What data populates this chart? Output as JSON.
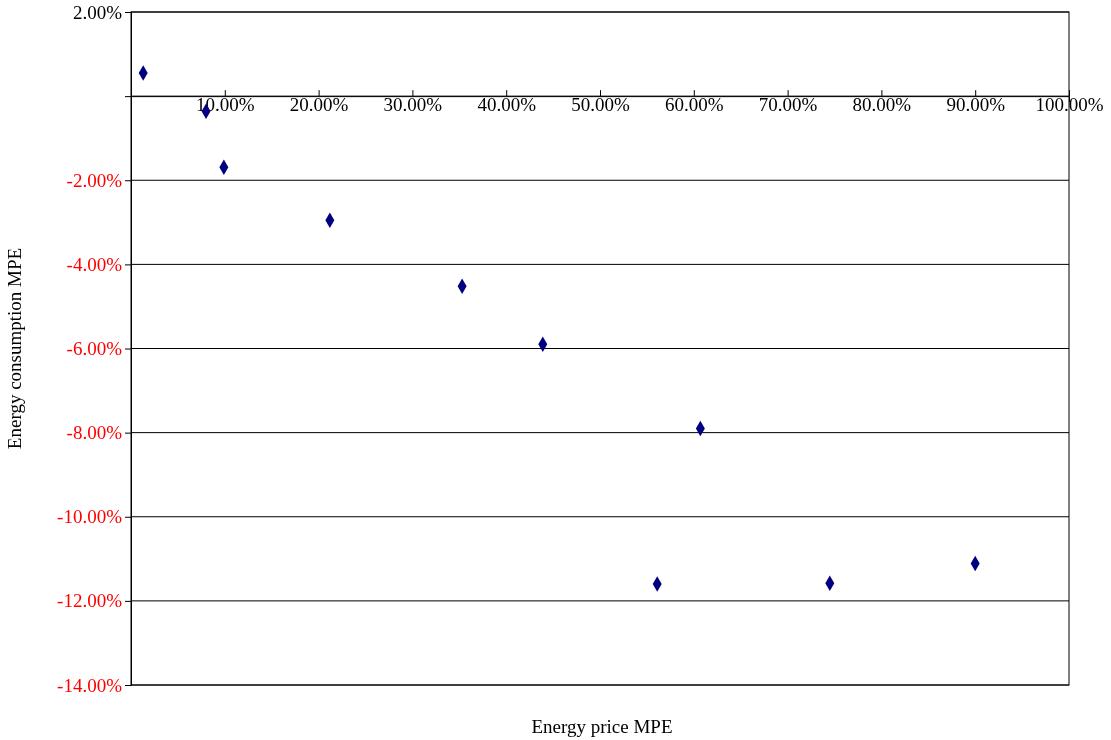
{
  "chart_data": {
    "type": "scatter",
    "xlabel": "Energy price MPE",
    "ylabel": "Energy consumption MPE",
    "x": [
      1.3,
      8.0,
      9.9,
      21.2,
      35.3,
      43.9,
      56.1,
      60.7,
      74.5,
      90.0
    ],
    "values": [
      0.55,
      -0.36,
      -1.69,
      -2.95,
      -4.52,
      -5.9,
      -11.6,
      -7.9,
      -11.58,
      -11.11
    ],
    "color": "#000080",
    "marker": "diamond",
    "grid": "y",
    "xlim": [
      0,
      100
    ],
    "xticks": [
      {
        "value": 0,
        "label": null
      },
      {
        "value": 10,
        "label": "10.00%"
      },
      {
        "value": 20,
        "label": "20.00%"
      },
      {
        "value": 30,
        "label": "30.00%"
      },
      {
        "value": 40,
        "label": "40.00%"
      },
      {
        "value": 50,
        "label": "50.00%"
      },
      {
        "value": 60,
        "label": "60.00%"
      },
      {
        "value": 70,
        "label": "70.00%"
      },
      {
        "value": 80,
        "label": "80.00%"
      },
      {
        "value": 90,
        "label": "90.00%"
      },
      {
        "value": 100,
        "label": "100.00%"
      }
    ],
    "ylim": [
      -14,
      2
    ],
    "yticks": [
      {
        "value": 2,
        "label": "2.00%"
      },
      {
        "value": 0,
        "label": null
      },
      {
        "value": -2,
        "label": "-2.00%"
      },
      {
        "value": -4,
        "label": "-4.00%"
      },
      {
        "value": -6,
        "label": "-6.00%"
      },
      {
        "value": -8,
        "label": "-8.00%"
      },
      {
        "value": -10,
        "label": "-10.00%"
      },
      {
        "value": -12,
        "label": "-12.00%"
      },
      {
        "value": -14,
        "label": "-14.00%"
      }
    ]
  }
}
